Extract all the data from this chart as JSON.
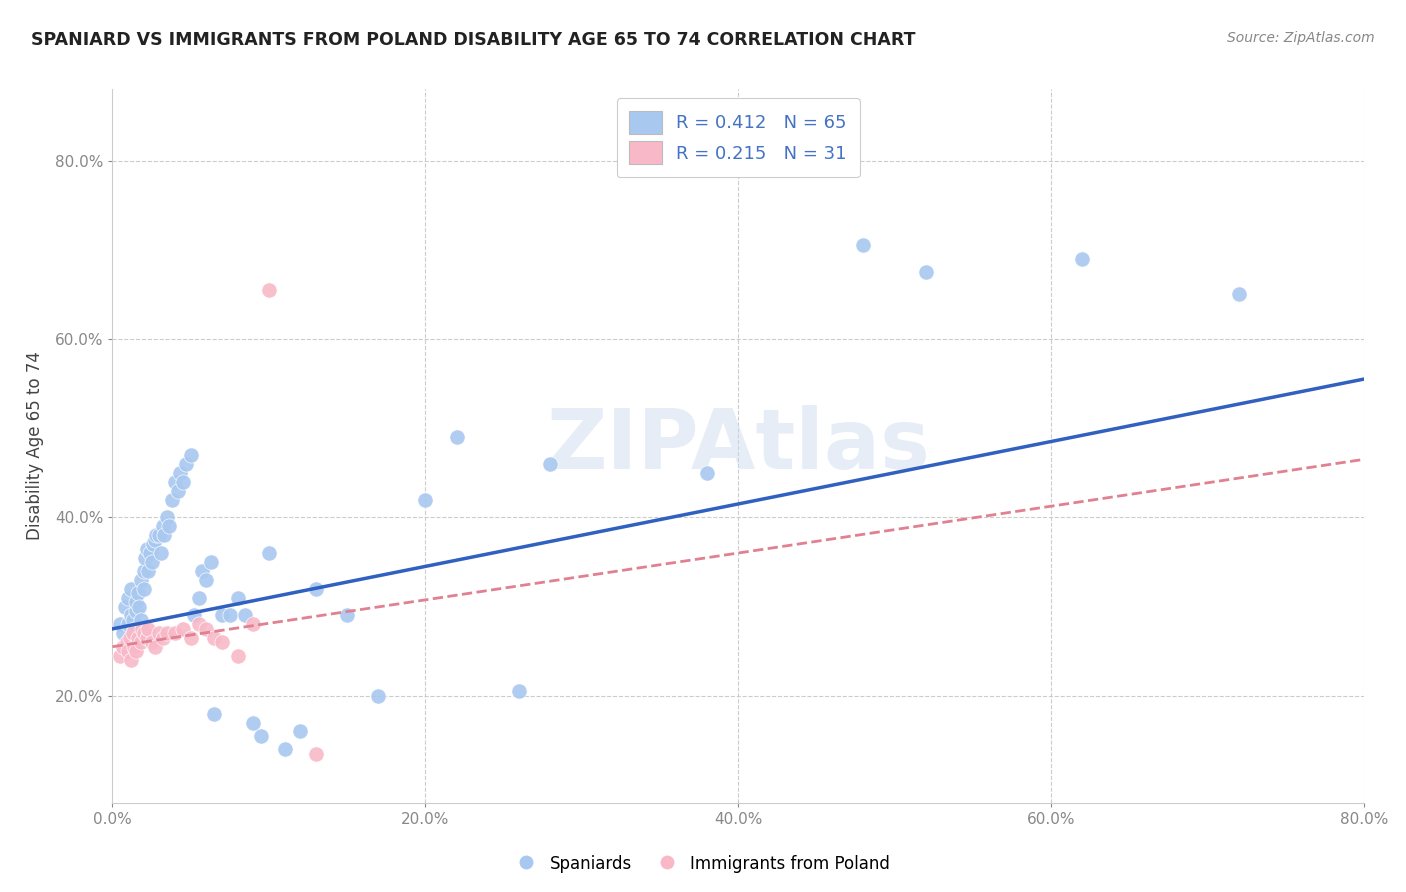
{
  "title": "SPANIARD VS IMMIGRANTS FROM POLAND DISABILITY AGE 65 TO 74 CORRELATION CHART",
  "source": "Source: ZipAtlas.com",
  "ylabel": "Disability Age 65 to 74",
  "xlim": [
    0.0,
    0.8
  ],
  "ylim": [
    0.08,
    0.88
  ],
  "xticks": [
    0.0,
    0.2,
    0.4,
    0.6,
    0.8
  ],
  "xticklabels": [
    "0.0%",
    "20.0%",
    "40.0%",
    "60.0%",
    "80.0%"
  ],
  "yticks": [
    0.2,
    0.4,
    0.6,
    0.8
  ],
  "yticklabels": [
    "20.0%",
    "40.0%",
    "60.0%",
    "80.0%"
  ],
  "legend1_label": "R = 0.412   N = 65",
  "legend2_label": "R = 0.215   N = 31",
  "legend_bottom_label1": "Spaniards",
  "legend_bottom_label2": "Immigrants from Poland",
  "blue_color": "#A8C8F0",
  "pink_color": "#F8B8C8",
  "blue_line_color": "#3060C0",
  "pink_line_color": "#E08090",
  "watermark": "ZIPAtlas",
  "background_color": "#FFFFFF",
  "grid_color": "#CCCCCC",
  "spaniards_x": [
    0.005,
    0.007,
    0.008,
    0.01,
    0.01,
    0.012,
    0.012,
    0.013,
    0.014,
    0.015,
    0.015,
    0.016,
    0.017,
    0.018,
    0.018,
    0.02,
    0.02,
    0.021,
    0.022,
    0.023,
    0.024,
    0.025,
    0.026,
    0.027,
    0.028,
    0.03,
    0.031,
    0.032,
    0.033,
    0.035,
    0.036,
    0.038,
    0.04,
    0.042,
    0.043,
    0.045,
    0.047,
    0.05,
    0.052,
    0.055,
    0.057,
    0.06,
    0.063,
    0.065,
    0.07,
    0.075,
    0.08,
    0.085,
    0.09,
    0.095,
    0.1,
    0.11,
    0.12,
    0.13,
    0.15,
    0.17,
    0.2,
    0.22,
    0.26,
    0.28,
    0.38,
    0.48,
    0.52,
    0.62,
    0.72
  ],
  "spaniards_y": [
    0.28,
    0.27,
    0.3,
    0.28,
    0.31,
    0.29,
    0.32,
    0.285,
    0.275,
    0.295,
    0.305,
    0.315,
    0.3,
    0.285,
    0.33,
    0.32,
    0.34,
    0.355,
    0.365,
    0.34,
    0.36,
    0.35,
    0.37,
    0.375,
    0.38,
    0.38,
    0.36,
    0.39,
    0.38,
    0.4,
    0.39,
    0.42,
    0.44,
    0.43,
    0.45,
    0.44,
    0.46,
    0.47,
    0.29,
    0.31,
    0.34,
    0.33,
    0.35,
    0.18,
    0.29,
    0.29,
    0.31,
    0.29,
    0.17,
    0.155,
    0.36,
    0.14,
    0.16,
    0.32,
    0.29,
    0.2,
    0.42,
    0.49,
    0.205,
    0.46,
    0.45,
    0.705,
    0.675,
    0.69,
    0.65
  ],
  "poland_x": [
    0.005,
    0.007,
    0.009,
    0.01,
    0.011,
    0.012,
    0.013,
    0.014,
    0.015,
    0.016,
    0.018,
    0.019,
    0.02,
    0.022,
    0.023,
    0.025,
    0.027,
    0.03,
    0.032,
    0.035,
    0.04,
    0.045,
    0.05,
    0.055,
    0.06,
    0.065,
    0.07,
    0.08,
    0.09,
    0.1,
    0.13
  ],
  "poland_y": [
    0.245,
    0.255,
    0.26,
    0.25,
    0.265,
    0.24,
    0.27,
    0.255,
    0.25,
    0.265,
    0.26,
    0.275,
    0.27,
    0.265,
    0.275,
    0.26,
    0.255,
    0.27,
    0.265,
    0.27,
    0.27,
    0.275,
    0.265,
    0.28,
    0.275,
    0.265,
    0.26,
    0.245,
    0.28,
    0.655,
    0.135
  ],
  "blue_line_x0": 0.0,
  "blue_line_y0": 0.275,
  "blue_line_x1": 0.8,
  "blue_line_y1": 0.555,
  "pink_line_x0": 0.0,
  "pink_line_y0": 0.255,
  "pink_line_x1": 0.8,
  "pink_line_y1": 0.465
}
